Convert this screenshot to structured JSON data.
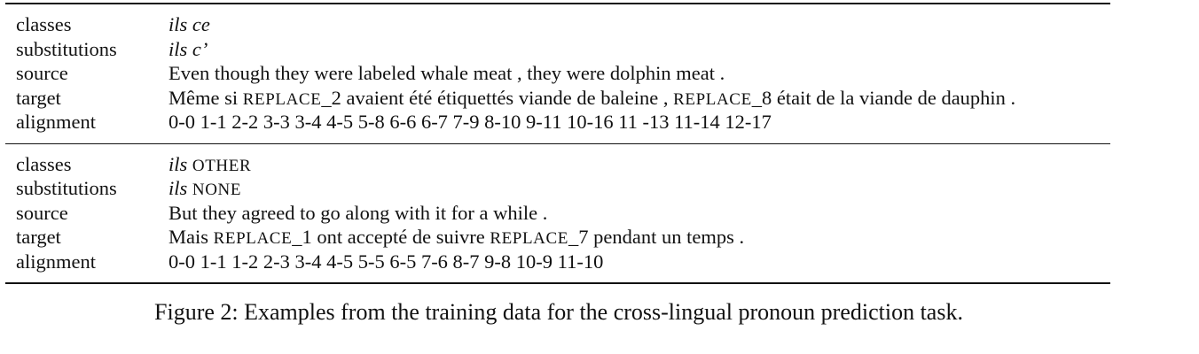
{
  "examples": [
    {
      "labels": {
        "classes": "classes",
        "substitutions": "substitutions",
        "source": "source",
        "target": "target",
        "alignment": "alignment"
      },
      "classes": "ils ce",
      "substitutions": "ils c’",
      "source": "Even though they were labeled whale meat , they were dolphin meat .",
      "target": {
        "part1": "Même si ",
        "replace_a": "REPLACE",
        "part2": "_2 avaient été étiquettés viande de baleine , ",
        "replace_b": "REPLACE",
        "part3": "_8 était de la viande de dauphin ."
      },
      "alignment": "0-0 1-1 2-2 3-3 3-4 4-5 5-8 6-6 6-7 7-9 8-10 9-11 10-16 11 -13 11-14 12-17"
    },
    {
      "labels": {
        "classes": "classes",
        "substitutions": "substitutions",
        "source": "source",
        "target": "target",
        "alignment": "alignment"
      },
      "classes": {
        "word": "ils",
        "tag": "OTHER"
      },
      "substitutions": {
        "word": "ils",
        "tag": "NONE"
      },
      "source": "But they agreed to go along with it for a while .",
      "target": {
        "part1": "Mais ",
        "replace_a": "REPLACE",
        "part2": "_1 ont accepté de suivre ",
        "replace_b": "REPLACE",
        "part3": "_7 pendant un temps ."
      },
      "alignment": "0-0 1-1 1-2 2-3 3-4 4-5 5-5 6-5 7-6 8-7 9-8 10-9 11-10"
    }
  ],
  "caption": "Figure 2: Examples from the training data for the cross-lingual pronoun prediction task."
}
